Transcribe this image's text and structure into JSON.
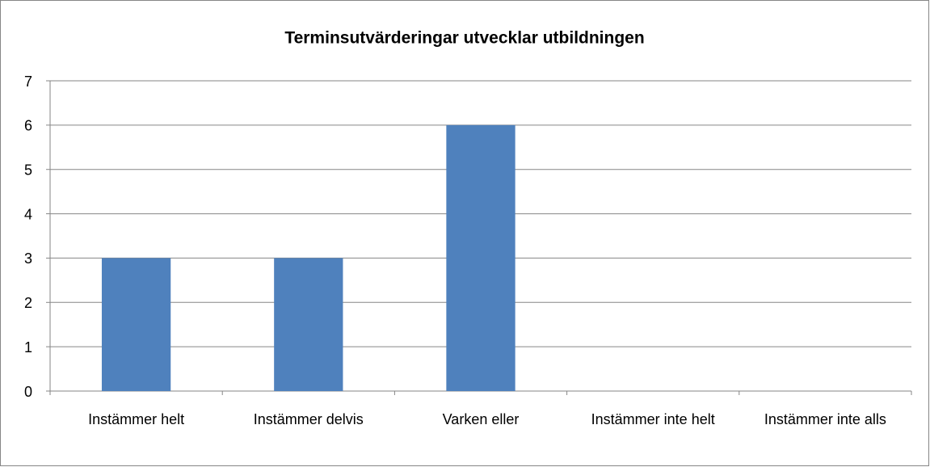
{
  "chart_data": {
    "type": "bar",
    "title": "Terminsutvärderingar utvecklar utbildningen",
    "categories": [
      "Instämmer helt",
      "Instämmer delvis",
      "Varken eller",
      "Instämmer inte helt",
      "Instämmer inte alls"
    ],
    "values": [
      3,
      3,
      6,
      0,
      0
    ],
    "color": "#4f81bd",
    "ylim": [
      0,
      7
    ],
    "yticks": [
      0,
      1,
      2,
      3,
      4,
      5,
      6,
      7
    ],
    "grid": true
  }
}
